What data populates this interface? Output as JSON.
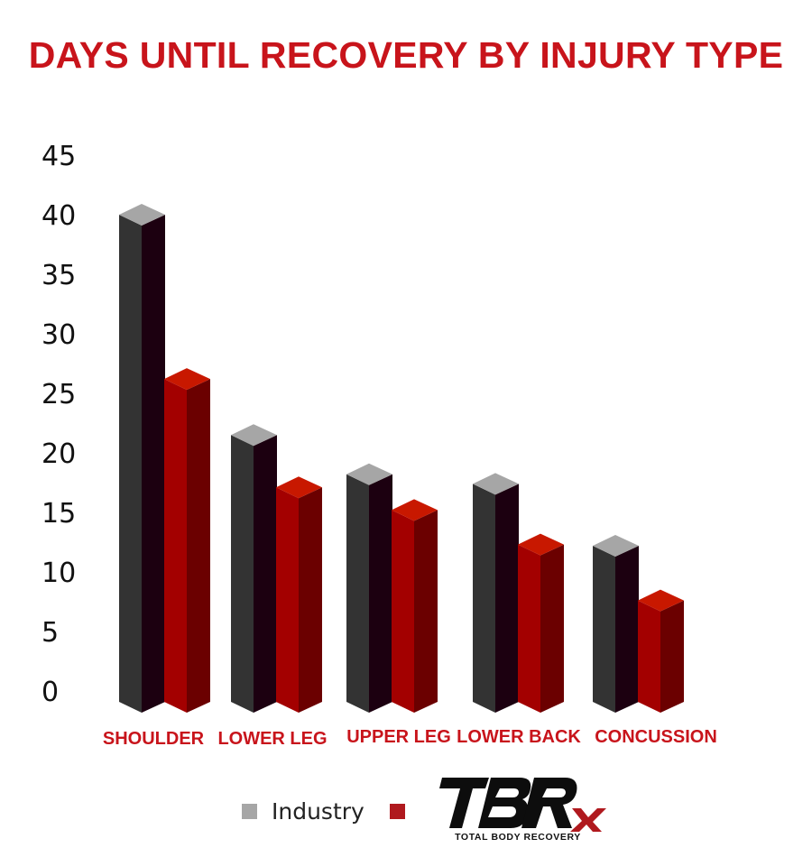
{
  "chart_data": {
    "type": "bar",
    "title": "DAYS UNTIL RECOVERY BY INJURY TYPE",
    "categories": [
      "SHOULDER",
      "LOWER LEG",
      "UPPER LEG",
      "LOWER BACK",
      "CONCUSSION"
    ],
    "series": [
      {
        "name": "Industry",
        "values": [
          40,
          21.5,
          18.2,
          17.4,
          12.2
        ],
        "color": "#333333",
        "side_color": "#1c0010",
        "top_color": "#a6a6a6"
      },
      {
        "name": "",
        "values": [
          26.2,
          17.1,
          15.2,
          12.3,
          7.6
        ],
        "color": "#a30000",
        "side_color": "#6b0000",
        "top_color": "#c81800"
      }
    ],
    "y_ticks": [
      "45",
      "40",
      "35",
      "30",
      "25",
      "20",
      "15",
      "10",
      "5",
      "0"
    ],
    "ylim": [
      0,
      45
    ],
    "xlabel": "",
    "ylabel": "",
    "legend_position": "bottom",
    "grid": false,
    "title_color": "#c8141b",
    "category_label_color": "#c8141b"
  },
  "legend": {
    "items": [
      {
        "label": "Industry",
        "color": "#a6a6a6"
      },
      {
        "label": "",
        "color": "#b0191e"
      }
    ]
  },
  "logo": {
    "text": "TBRx",
    "subtitle": "TOTAL BODY RECOVERY"
  }
}
